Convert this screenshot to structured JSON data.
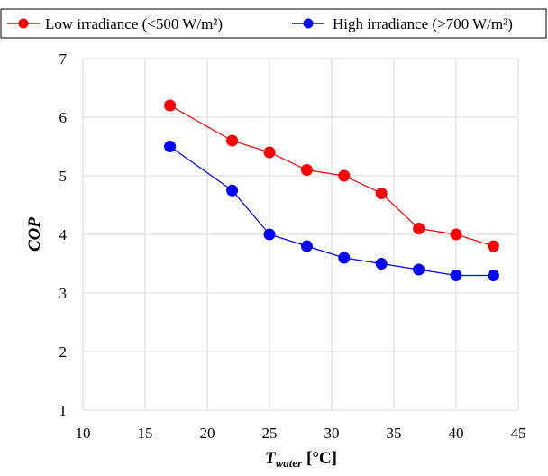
{
  "chart_data": {
    "type": "line",
    "xlabel": "T",
    "xlabel_sub": "water",
    "xlabel_unit": " [°C]",
    "ylabel": "COP",
    "xlim": [
      10,
      45
    ],
    "ylim": [
      1,
      7
    ],
    "xticks": [
      10,
      15,
      20,
      25,
      30,
      35,
      40,
      45
    ],
    "yticks": [
      1,
      2,
      3,
      4,
      5,
      6,
      7
    ],
    "grid": true,
    "legend_position": "top",
    "series": [
      {
        "name": "Low irradiance (<500 W/m²)",
        "color": "#ff0000",
        "x": [
          17,
          22,
          25,
          28,
          31,
          34,
          37,
          40,
          43
        ],
        "y": [
          6.2,
          5.6,
          5.4,
          5.1,
          5.0,
          4.7,
          4.1,
          4.0,
          3.8
        ]
      },
      {
        "name": "High irradiance (>700 W/m²)",
        "color": "#0000ff",
        "x": [
          17,
          22,
          25,
          28,
          31,
          34,
          37,
          40,
          43
        ],
        "y": [
          5.5,
          4.75,
          4.0,
          3.8,
          3.6,
          3.5,
          3.4,
          3.3,
          3.3
        ]
      }
    ]
  }
}
